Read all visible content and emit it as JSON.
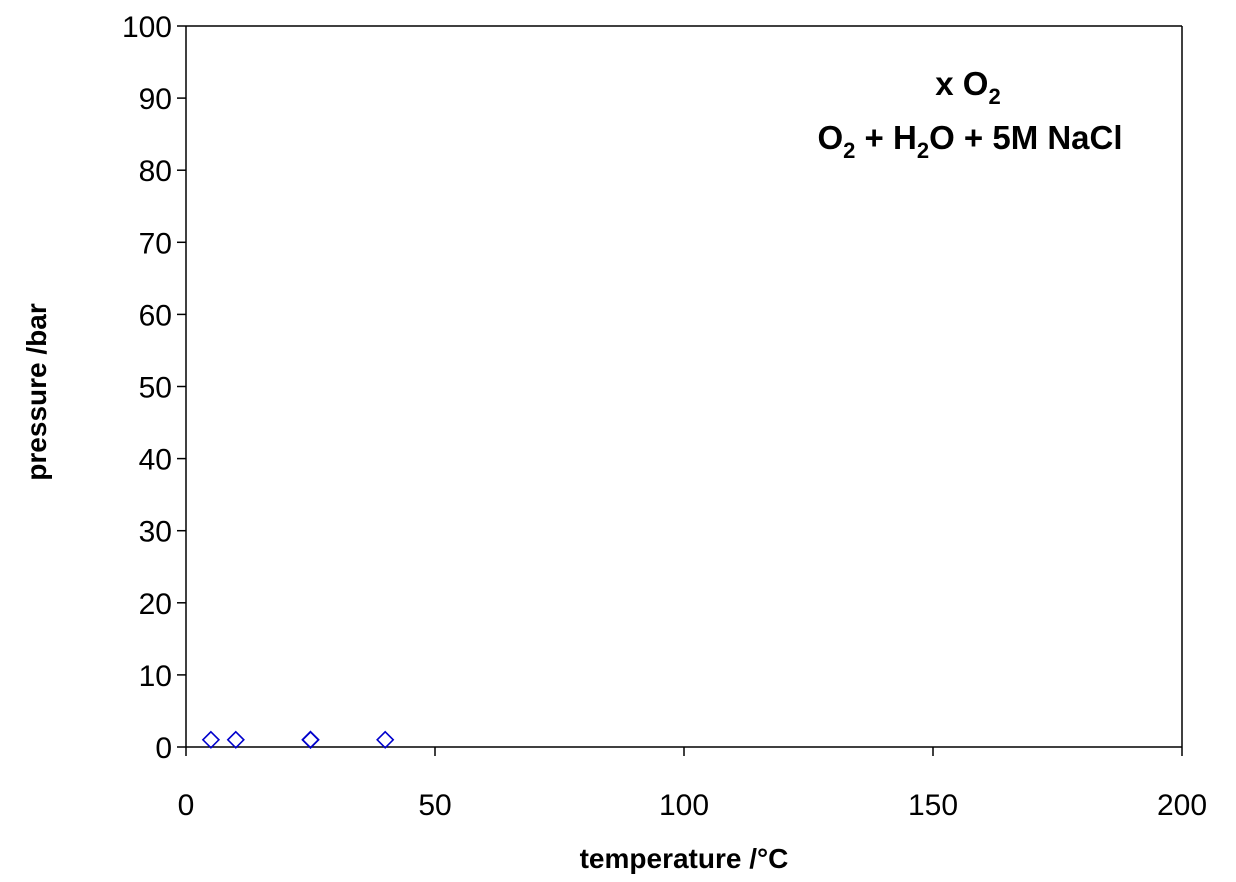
{
  "chart_data": {
    "type": "scatter",
    "title": "",
    "xlabel": "temperature /°C",
    "ylabel": "pressure /bar",
    "xlim": [
      0,
      200
    ],
    "ylim": [
      0,
      100
    ],
    "xticks": [
      0,
      50,
      100,
      150,
      200
    ],
    "yticks": [
      0,
      10,
      20,
      30,
      40,
      50,
      60,
      70,
      80,
      90,
      100
    ],
    "grid": false,
    "annotation": {
      "line1": {
        "prefix": "x O",
        "sub": "2"
      },
      "line2": {
        "a": "O",
        "a_sub": "2",
        "b": " + H",
        "b_sub": "2",
        "c": "O + 5M NaCl"
      }
    },
    "marker": "open-diamond",
    "marker_color": "#0000CC",
    "series": [
      {
        "x": [
          5,
          10,
          25,
          25,
          25,
          40
        ],
        "y": [
          1,
          1,
          1,
          1,
          1,
          1
        ]
      }
    ]
  }
}
